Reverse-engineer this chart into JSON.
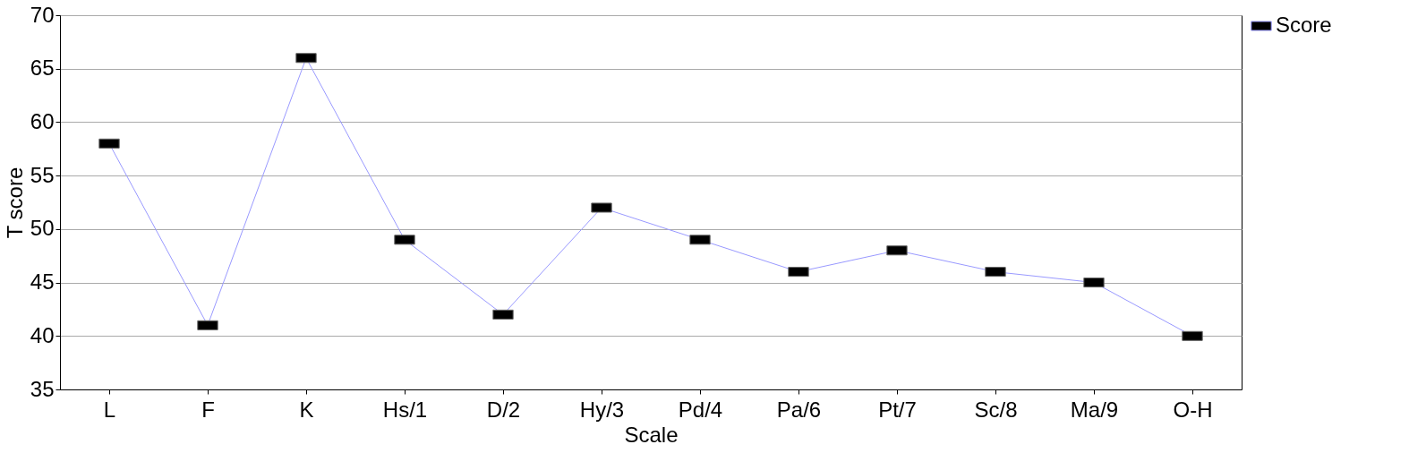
{
  "chart_data": {
    "type": "line",
    "xlabel": "Scale",
    "ylabel": "T score",
    "categories": [
      "L",
      "F",
      "K",
      "Hs/1",
      "D/2",
      "Hy/3",
      "Pd/4",
      "Pa/6",
      "Pt/7",
      "Sc/8",
      "Ma/9",
      "O-H"
    ],
    "series": [
      {
        "name": "Score",
        "color": "#9999ff",
        "values": [
          58,
          41,
          66,
          49,
          42,
          52,
          49,
          46,
          48,
          46,
          45,
          40
        ]
      }
    ],
    "ylim": [
      35,
      70
    ],
    "yticks": [
      35,
      40,
      45,
      50,
      55,
      60,
      65,
      70
    ],
    "grid": "y",
    "legend": "right",
    "marker": "square",
    "line_style": "solid"
  }
}
